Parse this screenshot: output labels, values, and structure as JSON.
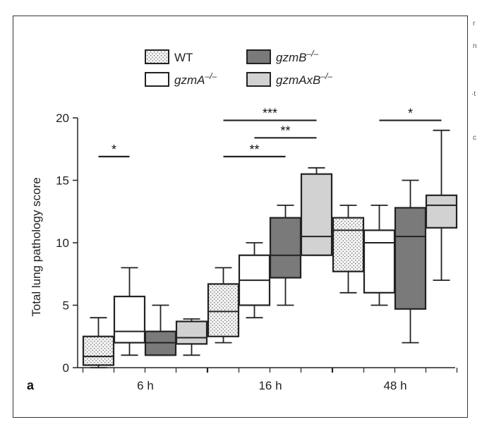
{
  "panel_label": "a",
  "edge_fragments": [
    "r",
    "n",
    "·t",
    "c"
  ],
  "colors": {
    "WT": "#f1f1f1",
    "gzmA": "#ffffff",
    "gzmB": "#7a7a7a",
    "gzmAxB": "#d2d2d2",
    "stroke": "#222222"
  },
  "chart_data": {
    "type": "box",
    "title": "",
    "xlabel": "",
    "ylabel": "Total lung pathology score",
    "ylim": [
      0,
      20
    ],
    "yticks": [
      0,
      5,
      10,
      15,
      20
    ],
    "categories": [
      "6 h",
      "16 h",
      "48 h"
    ],
    "legend": [
      {
        "key": "WT",
        "pre": "WT",
        "sup": "",
        "italic": false,
        "pattern": "dots"
      },
      {
        "key": "gzmB",
        "pre": "gzmB",
        "sup": "–/–",
        "italic": true,
        "pattern": "solid"
      },
      {
        "key": "gzmA",
        "pre": "gzmA",
        "sup": "–/–",
        "italic": true,
        "pattern": "solid"
      },
      {
        "key": "gzmAxB",
        "pre": "gzmAxB",
        "sup": "–/–",
        "italic": true,
        "pattern": "solid"
      }
    ],
    "series": [
      {
        "key": "WT",
        "boxes": [
          {
            "min": 0,
            "q1": 0.2,
            "median": 0.9,
            "q3": 2.5,
            "max": 4
          },
          {
            "min": 2,
            "q1": 2.5,
            "median": 4.5,
            "q3": 6.7,
            "max": 8
          },
          {
            "min": 6,
            "q1": 7.7,
            "median": 11,
            "q3": 12,
            "max": 13
          }
        ]
      },
      {
        "key": "gzmA",
        "boxes": [
          {
            "min": 1,
            "q1": 2,
            "median": 2.9,
            "q3": 5.7,
            "max": 8
          },
          {
            "min": 4,
            "q1": 5,
            "median": 7,
            "q3": 9,
            "max": 10
          },
          {
            "min": 5,
            "q1": 6,
            "median": 10,
            "q3": 11,
            "max": 13
          }
        ]
      },
      {
        "key": "gzmB",
        "boxes": [
          {
            "min": 1,
            "q1": 1,
            "median": 2,
            "q3": 2.9,
            "max": 5
          },
          {
            "min": 5,
            "q1": 7.2,
            "median": 9,
            "q3": 12,
            "max": 13
          },
          {
            "min": 2,
            "q1": 4.7,
            "median": 10.5,
            "q3": 12.8,
            "max": 15
          }
        ]
      },
      {
        "key": "gzmAxB",
        "boxes": [
          {
            "min": 1,
            "q1": 1.9,
            "median": 2.4,
            "q3": 3.7,
            "max": 3.9
          },
          {
            "min": 9,
            "q1": 9,
            "median": 10.5,
            "q3": 15.5,
            "max": 16
          },
          {
            "min": 7,
            "q1": 11.2,
            "median": 13,
            "q3": 13.8,
            "max": 19
          }
        ]
      }
    ],
    "significance": [
      {
        "label": "*",
        "category": 0,
        "from": 0,
        "to": 1,
        "y": 16.9
      },
      {
        "label": "***",
        "category": 1,
        "from": 0,
        "to": 3,
        "y": 19.8
      },
      {
        "label": "**",
        "category": 1,
        "from": 1,
        "to": 3,
        "y": 18.4
      },
      {
        "label": "**",
        "category": 1,
        "from": 0,
        "to": 2,
        "y": 16.9
      },
      {
        "label": "*",
        "category": 2,
        "from": 1,
        "to": 3,
        "y": 19.8
      }
    ]
  }
}
